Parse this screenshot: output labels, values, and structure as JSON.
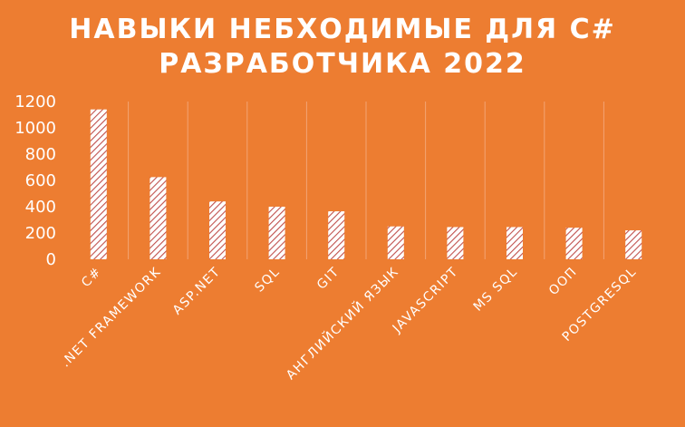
{
  "chart_data": {
    "type": "bar",
    "title": [
      "НАВЫКИ НЕБХОДИМЫЕ ДЛЯ C#",
      "РАЗРАБОТЧИКА 2022"
    ],
    "categories": [
      "C#",
      ".NET FRAMEWORK",
      "ASP.NET",
      "SQL",
      "GIT",
      "АНГЛИЙСКИЙ ЯЗЫК",
      "JAVASCRIPT",
      "MS SQL",
      "OOП",
      "POSTGRESQL"
    ],
    "values": [
      1140,
      625,
      440,
      400,
      365,
      250,
      245,
      245,
      240,
      220
    ],
    "yticks": [
      "0",
      "200",
      "400",
      "600",
      "800",
      "1000",
      "1200"
    ],
    "ylim": [
      0,
      1200
    ],
    "grid": "vertical",
    "bar_fill": "hatched",
    "colors": {
      "background": "#ED7D31",
      "text": "#FFFFFF",
      "bar_pattern": "#C0504D",
      "bar_base": "#FFFFFF",
      "grid": "#F3A474"
    }
  }
}
